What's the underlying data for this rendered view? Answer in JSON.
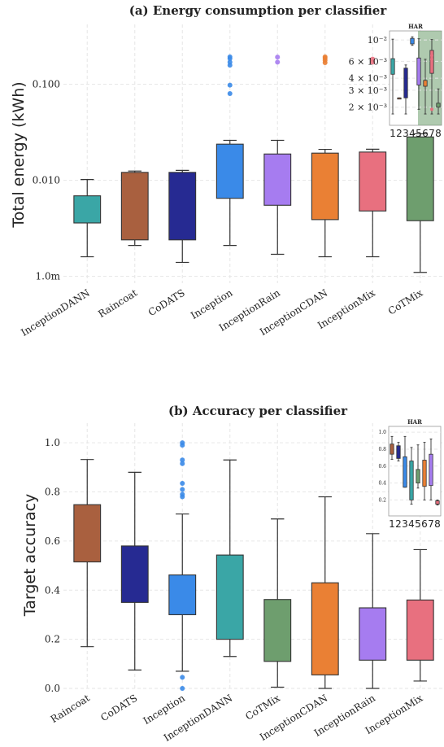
{
  "chart_data": [
    {
      "type": "box",
      "title": "(a) Energy consumption per classifier",
      "ylabel": "Total energy (kWh)",
      "xlabel": "",
      "yscale": "log",
      "ylim": [
        0.00085,
        0.42
      ],
      "yticks": [
        0.001,
        0.01,
        0.1
      ],
      "ytick_labels": [
        "1.0m",
        "0.010",
        "0.100"
      ],
      "grid": true,
      "categories": [
        "InceptionDANN",
        "Raincoat",
        "CoDATS",
        "Inception",
        "InceptionRain",
        "InceptionCDAN",
        "InceptionMix",
        "CoTMix"
      ],
      "colors": [
        "#3aa6a6",
        "#a9603f",
        "#262a92",
        "#3a8ae8",
        "#a67cf0",
        "#ea8034",
        "#e8707f",
        "#6e9e6e"
      ],
      "boxes": [
        {
          "whislo": 0.0016,
          "q1": 0.0036,
          "q3": 0.0069,
          "whishi": 0.0102,
          "fliers": []
        },
        {
          "whislo": 0.0021,
          "q1": 0.0024,
          "q3": 0.0121,
          "whishi": 0.0125,
          "fliers": []
        },
        {
          "whislo": 0.0014,
          "q1": 0.0024,
          "q3": 0.0121,
          "whishi": 0.0127,
          "fliers": []
        },
        {
          "whislo": 0.0021,
          "q1": 0.0065,
          "q3": 0.0238,
          "whishi": 0.0261,
          "fliers": [
            0.08,
            0.098,
            0.158,
            0.17,
            0.185,
            0.193
          ]
        },
        {
          "whislo": 0.0017,
          "q1": 0.0055,
          "q3": 0.0188,
          "whishi": 0.0261,
          "fliers": [
            0.17,
            0.192
          ]
        },
        {
          "whislo": 0.0016,
          "q1": 0.0039,
          "q3": 0.0192,
          "whishi": 0.021,
          "fliers": [
            0.168,
            0.178,
            0.187,
            0.193
          ]
        },
        {
          "whislo": 0.0016,
          "q1": 0.0048,
          "q3": 0.0197,
          "whishi": 0.0211,
          "fliers": [
            0.17,
            0.183
          ]
        },
        {
          "whislo": 0.0011,
          "q1": 0.0038,
          "q3": 0.0283,
          "whishi": 0.0305,
          "fliers": []
        }
      ],
      "inset": {
        "title": "HAR",
        "yscale": "log",
        "ytick_labels": [
          "2 × 10⁻³",
          "3 × 10⁻³",
          "4 × 10⁻³",
          "6 × 10⁻³",
          "10⁻²"
        ],
        "yticks": [
          0.002,
          0.003,
          0.004,
          0.006,
          0.01
        ],
        "ylim": [
          0.0014,
          0.0115
        ],
        "xtick_labels": [
          "1",
          "2",
          "3",
          "4",
          "5",
          "6",
          "7",
          "8"
        ],
        "colors": [
          "#3aa6a6",
          "#a9603f",
          "#262a92",
          "#3a8ae8",
          "#a67cf0",
          "#ea8034",
          "#e8707f",
          "#6e9e6e"
        ],
        "boxes": [
          {
            "whislo": 0.0017,
            "q1": 0.0044,
            "q3": 0.0064,
            "whishi": 0.0102,
            "fliers": []
          },
          {
            "whislo": 0.00245,
            "q1": 0.00245,
            "q3": 0.0025,
            "whishi": 0.0025,
            "fliers": []
          },
          {
            "whislo": 0.0017,
            "q1": 0.0025,
            "q3": 0.0051,
            "whishi": 0.0055,
            "fliers": []
          },
          {
            "whislo": 0.0088,
            "q1": 0.0091,
            "q3": 0.0104,
            "whishi": 0.0108,
            "fliers": []
          },
          {
            "whislo": 0.0019,
            "q1": 0.0034,
            "q3": 0.0065,
            "whishi": 0.0103,
            "fliers": []
          },
          {
            "whislo": 0.0017,
            "q1": 0.0033,
            "q3": 0.0038,
            "whishi": 0.0063,
            "fliers": []
          },
          {
            "whislo": 0.0017,
            "q1": 0.0045,
            "q3": 0.0078,
            "whishi": 0.0101,
            "fliers": [
              0.0063,
              0.0069,
              0.0019
            ]
          },
          {
            "whislo": 0.0017,
            "q1": 0.002,
            "q3": 0.0022,
            "whishi": 0.0031,
            "fliers": []
          }
        ]
      }
    },
    {
      "type": "box",
      "title": "(b) Accuracy per classifier",
      "ylabel": "Target accuracy",
      "xlabel": "",
      "yscale": "linear",
      "ylim": [
        0,
        1.08
      ],
      "yticks": [
        0,
        0.2,
        0.4,
        0.6,
        0.8,
        1.0
      ],
      "ytick_labels": [
        "0.0",
        "0.2",
        "0.4",
        "0.6",
        "0.8",
        "1.0"
      ],
      "grid": true,
      "categories": [
        "Raincoat",
        "CoDATS",
        "Inception",
        "InceptionDANN",
        "CoTMix",
        "InceptionCDAN",
        "InceptionRain",
        "InceptionMix"
      ],
      "colors": [
        "#a9603f",
        "#262a92",
        "#3a8ae8",
        "#3aa6a6",
        "#6e9e6e",
        "#ea8034",
        "#a67cf0",
        "#e8707f"
      ],
      "boxes": [
        {
          "whislo": 0.17,
          "q1": 0.515,
          "q3": 0.748,
          "whishi": 0.932,
          "fliers": []
        },
        {
          "whislo": 0.075,
          "q1": 0.35,
          "q3": 0.58,
          "whishi": 0.88,
          "fliers": []
        },
        {
          "whislo": 0.07,
          "q1": 0.3,
          "q3": 0.462,
          "whishi": 0.71,
          "fliers": [
            1.0,
            0.99,
            0.93,
            0.915,
            0.835,
            0.81,
            0.79,
            0.78,
            0.045,
            0.0
          ]
        },
        {
          "whislo": 0.13,
          "q1": 0.2,
          "q3": 0.543,
          "whishi": 0.93,
          "fliers": []
        },
        {
          "whislo": 0.005,
          "q1": 0.11,
          "q3": 0.362,
          "whishi": 0.69,
          "fliers": []
        },
        {
          "whislo": 0.0,
          "q1": 0.055,
          "q3": 0.43,
          "whishi": 0.78,
          "fliers": []
        },
        {
          "whislo": 0.0,
          "q1": 0.115,
          "q3": 0.328,
          "whishi": 0.63,
          "fliers": []
        },
        {
          "whislo": 0.03,
          "q1": 0.115,
          "q3": 0.36,
          "whishi": 0.565,
          "fliers": []
        }
      ],
      "inset": {
        "title": "HAR",
        "yscale": "linear",
        "ylim": [
          0.05,
          1.03
        ],
        "yticks": [
          0.2,
          0.4,
          0.6,
          0.8,
          1.0
        ],
        "ytick_labels": [
          "0.2",
          "0.4",
          "0.6",
          "0.8",
          "1.0"
        ],
        "xtick_labels": [
          "1",
          "2",
          "3",
          "4",
          "5",
          "6",
          "7",
          "8"
        ],
        "colors": [
          "#a9603f",
          "#262a92",
          "#3a8ae8",
          "#3aa6a6",
          "#6e9e6e",
          "#ea8034",
          "#a67cf0",
          "#e8707f"
        ],
        "boxes": [
          {
            "whislo": 0.68,
            "q1": 0.74,
            "q3": 0.86,
            "whishi": 0.95,
            "fliers": []
          },
          {
            "whislo": 0.66,
            "q1": 0.69,
            "q3": 0.84,
            "whishi": 0.88,
            "fliers": []
          },
          {
            "whislo": 0.35,
            "q1": 0.35,
            "q3": 0.71,
            "whishi": 0.95,
            "fliers": []
          },
          {
            "whislo": 0.15,
            "q1": 0.2,
            "q3": 0.66,
            "whishi": 0.82,
            "fliers": []
          },
          {
            "whislo": 0.34,
            "q1": 0.4,
            "q3": 0.56,
            "whishi": 0.85,
            "fliers": []
          },
          {
            "whislo": 0.2,
            "q1": 0.36,
            "q3": 0.67,
            "whishi": 0.88,
            "fliers": []
          },
          {
            "whislo": 0.2,
            "q1": 0.37,
            "q3": 0.74,
            "whishi": 0.92,
            "fliers": []
          },
          {
            "whislo": 0.14,
            "q1": 0.15,
            "q3": 0.19,
            "whishi": 0.2,
            "fliers": []
          }
        ]
      }
    }
  ]
}
